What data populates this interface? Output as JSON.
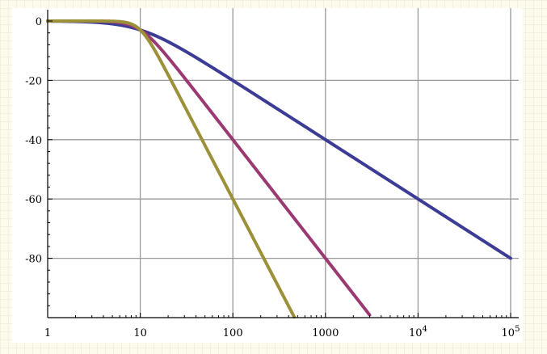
{
  "chart_data": {
    "type": "line",
    "title": "",
    "xlabel": "",
    "ylabel": "",
    "x_scale": "log",
    "xlim": [
      1,
      100000
    ],
    "ylim": [
      -100,
      0
    ],
    "grid": true,
    "x_ticks": [
      {
        "value": 1,
        "label": "1"
      },
      {
        "value": 10,
        "label": "10"
      },
      {
        "value": 100,
        "label": "100"
      },
      {
        "value": 1000,
        "label": "1000"
      },
      {
        "value": 10000,
        "label": "10",
        "exponent": "4"
      },
      {
        "value": 100000,
        "label": "10",
        "exponent": "5"
      }
    ],
    "y_ticks": [
      {
        "value": 0,
        "label": "0"
      },
      {
        "value": -20,
        "label": "-20"
      },
      {
        "value": -40,
        "label": "-40"
      },
      {
        "value": -60,
        "label": "-60"
      },
      {
        "value": -80,
        "label": "-80"
      }
    ],
    "series": [
      {
        "order": 1,
        "cutoff": 10,
        "color": "#3c3c96",
        "x": [
          1,
          2,
          5,
          10,
          20,
          50,
          100,
          1000,
          10000,
          100000
        ],
        "y": [
          -0.04,
          -0.17,
          -0.97,
          -3.01,
          -6.99,
          -14.15,
          -20.04,
          -40.0,
          -60.0,
          -80.0
        ]
      },
      {
        "order": 2,
        "cutoff": 10,
        "color": "#9b3a72",
        "x": [
          1,
          2,
          5,
          10,
          20,
          50,
          100,
          1000,
          3000
        ],
        "y": [
          0.0,
          -0.01,
          -0.26,
          -3.01,
          -12.3,
          -27.97,
          -40.0,
          -80.0,
          -99.1
        ]
      },
      {
        "order": 3,
        "cutoff": 10,
        "color": "#9c9039",
        "x": [
          1,
          2,
          5,
          10,
          20,
          50,
          100,
          200,
          460
        ],
        "y": [
          0.0,
          0.0,
          -0.07,
          -3.01,
          -18.07,
          -41.94,
          -60.0,
          -78.06,
          -99.8
        ]
      }
    ]
  }
}
